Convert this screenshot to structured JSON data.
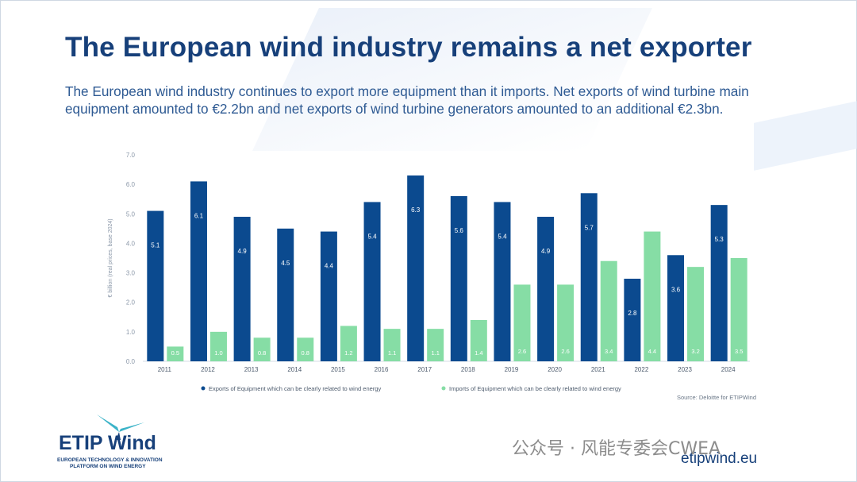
{
  "title": "The European wind industry remains a net exporter",
  "subtitle": "The European wind industry continues to export more equipment than it imports. Net exports of wind turbine main equipment amounted to €2.2bn and net exports of wind turbine generators amounted to an additional €2.3bn.",
  "chart_data": {
    "type": "bar",
    "ylabel": "€ billion (real prices, base 2024)",
    "ylim": [
      0,
      7
    ],
    "yticks": [
      "0.0",
      "1.0",
      "2.0",
      "3.0",
      "4.0",
      "5.0",
      "6.0",
      "7.0"
    ],
    "categories": [
      "2011",
      "2012",
      "2013",
      "2014",
      "2015",
      "2016",
      "2017",
      "2018",
      "2019",
      "2020",
      "2021",
      "2022",
      "2023",
      "2024"
    ],
    "series": [
      {
        "name": "Exports of Equipment which can be clearly related to wind energy",
        "color": "#0b4a8f",
        "values": [
          5.1,
          6.1,
          4.9,
          4.5,
          4.4,
          5.4,
          6.3,
          5.6,
          5.4,
          4.9,
          5.7,
          2.8,
          3.6,
          5.3
        ],
        "labels": [
          "5.1",
          "6.1",
          "4.9",
          "4.5",
          "4.4",
          "5.4",
          "6.3",
          "5.6",
          "5.4",
          "4.9",
          "5.7",
          "2.8",
          "3.6",
          "5.3"
        ]
      },
      {
        "name": "Imports of Equipment which can be clearly related to wind energy",
        "color": "#86dda5",
        "values": [
          0.5,
          1.0,
          0.8,
          0.8,
          1.2,
          1.1,
          1.1,
          1.4,
          2.6,
          2.6,
          3.4,
          4.4,
          3.2,
          3.5
        ],
        "labels": [
          "0.5",
          "1.0",
          "0.8",
          "0.8",
          "1.2",
          "1.1",
          "1.1",
          "1.4",
          "2.6",
          "2.6",
          "3.4",
          "4.4",
          "3.2",
          "3.5"
        ]
      }
    ],
    "source": "Source: Deloitte for ETIPWind"
  },
  "logo": {
    "main": "ETIP Wind",
    "line1": "EUROPEAN TECHNOLOGY & INNOVATION",
    "line2": "PLATFORM ON WIND ENERGY"
  },
  "watermark": "公众号 · 风能专委会CWEA",
  "website": "etipwind.eu"
}
